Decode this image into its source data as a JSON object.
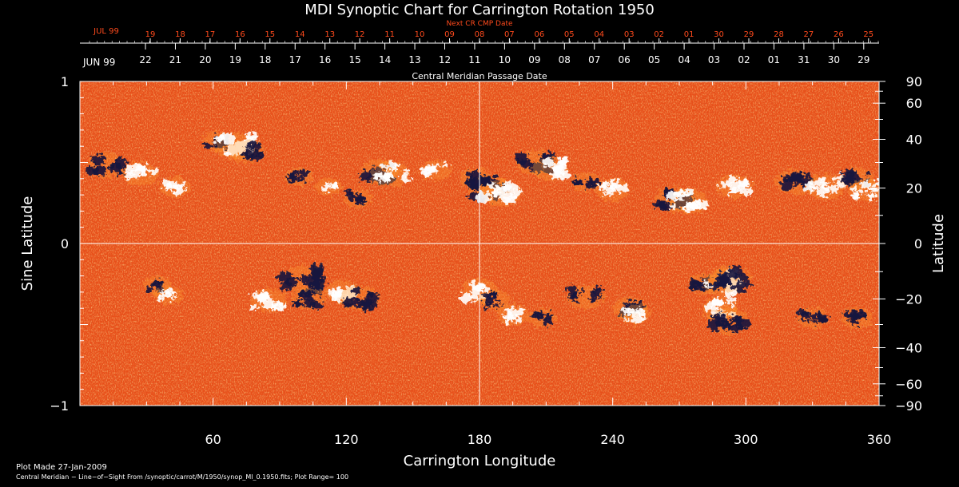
{
  "chart_data": {
    "type": "heatmap",
    "title": "MDI Synoptic Chart for Carrington Rotation 1950",
    "xlabel": "Carrington Longitude",
    "ylabel": "Sine Latitude",
    "y2label": "Latitude",
    "xlim": [
      0,
      360
    ],
    "ylim": [
      -1,
      1
    ],
    "x_ticks": [
      60,
      120,
      180,
      240,
      300,
      360
    ],
    "y_ticks": [
      {
        "v": 1,
        "label": "1"
      },
      {
        "v": 0,
        "label": "0"
      },
      {
        "v": -1,
        "label": "−1"
      }
    ],
    "lat_ticks": [
      {
        "deg": 90,
        "label": "90"
      },
      {
        "deg": 60,
        "label": "60"
      },
      {
        "deg": 40,
        "label": "40"
      },
      {
        "deg": 20,
        "label": "20"
      },
      {
        "deg": 0,
        "label": "0"
      },
      {
        "deg": -20,
        "label": "−20"
      },
      {
        "deg": -40,
        "label": "−40"
      },
      {
        "deg": -60,
        "label": "−60"
      },
      {
        "deg": -90,
        "label": "−90"
      }
    ],
    "cmp_axis": {
      "label": "Central Meridian Passage Date",
      "month_label": "JUN 99",
      "dates": [
        "22",
        "21",
        "20",
        "19",
        "18",
        "17",
        "16",
        "15",
        "14",
        "13",
        "12",
        "11",
        "10",
        "09",
        "08",
        "07",
        "06",
        "05",
        "04",
        "03",
        "02",
        "01",
        "31",
        "30",
        "29"
      ]
    },
    "next_cmp_axis": {
      "label": "Next CR CMP Date",
      "month_label": "JUL 99",
      "dates": [
        "19",
        "18",
        "17",
        "16",
        "15",
        "14",
        "13",
        "12",
        "11",
        "10",
        "09",
        "08",
        "07",
        "06",
        "05",
        "04",
        "03",
        "02",
        "01",
        "30",
        "29",
        "28",
        "27",
        "26",
        "25"
      ]
    },
    "plot_range": 100,
    "colors": {
      "background": "#e8501a",
      "positive": "#ffffff",
      "negative": "#16153f",
      "mid": "#ff9a30"
    },
    "regions": [
      {
        "lon": 12,
        "sinlat": 0.48,
        "polarity": "negative",
        "strength": 0.9
      },
      {
        "lon": 27,
        "sinlat": 0.43,
        "polarity": "positive",
        "strength": 0.8
      },
      {
        "lon": 43,
        "sinlat": 0.35,
        "polarity": "positive",
        "strength": 0.6
      },
      {
        "lon": 62,
        "sinlat": 0.63,
        "polarity": "negative",
        "strength": 0.6
      },
      {
        "lon": 70,
        "sinlat": 0.6,
        "polarity": "positive",
        "strength": 1.0
      },
      {
        "lon": 75,
        "sinlat": 0.57,
        "polarity": "negative",
        "strength": 0.8
      },
      {
        "lon": 99,
        "sinlat": 0.41,
        "polarity": "negative",
        "strength": 0.5
      },
      {
        "lon": 112,
        "sinlat": 0.35,
        "polarity": "positive",
        "strength": 0.4
      },
      {
        "lon": 125,
        "sinlat": 0.28,
        "polarity": "negative",
        "strength": 0.5
      },
      {
        "lon": 135,
        "sinlat": 0.44,
        "polarity": "negative",
        "strength": 0.9
      },
      {
        "lon": 140,
        "sinlat": 0.43,
        "polarity": "positive",
        "strength": 0.9
      },
      {
        "lon": 160,
        "sinlat": 0.45,
        "polarity": "positive",
        "strength": 0.6
      },
      {
        "lon": 178,
        "sinlat": 0.4,
        "polarity": "negative",
        "strength": 0.6
      },
      {
        "lon": 184,
        "sinlat": 0.34,
        "polarity": "negative",
        "strength": 1.0
      },
      {
        "lon": 190,
        "sinlat": 0.31,
        "polarity": "positive",
        "strength": 1.0
      },
      {
        "lon": 205,
        "sinlat": 0.5,
        "polarity": "negative",
        "strength": 0.9
      },
      {
        "lon": 212,
        "sinlat": 0.46,
        "polarity": "positive",
        "strength": 0.8
      },
      {
        "lon": 228,
        "sinlat": 0.38,
        "polarity": "negative",
        "strength": 0.5
      },
      {
        "lon": 240,
        "sinlat": 0.33,
        "polarity": "positive",
        "strength": 0.7
      },
      {
        "lon": 268,
        "sinlat": 0.27,
        "polarity": "negative",
        "strength": 0.9
      },
      {
        "lon": 274,
        "sinlat": 0.26,
        "polarity": "positive",
        "strength": 0.9
      },
      {
        "lon": 295,
        "sinlat": 0.35,
        "polarity": "positive",
        "strength": 0.8
      },
      {
        "lon": 322,
        "sinlat": 0.38,
        "polarity": "negative",
        "strength": 0.9
      },
      {
        "lon": 336,
        "sinlat": 0.35,
        "polarity": "positive",
        "strength": 0.9
      },
      {
        "lon": 350,
        "sinlat": 0.4,
        "polarity": "negative",
        "strength": 0.7
      },
      {
        "lon": 354,
        "sinlat": 0.33,
        "polarity": "positive",
        "strength": 0.7
      },
      {
        "lon": 35,
        "sinlat": -0.26,
        "polarity": "negative",
        "strength": 0.5
      },
      {
        "lon": 40,
        "sinlat": -0.32,
        "polarity": "positive",
        "strength": 0.5
      },
      {
        "lon": 85,
        "sinlat": -0.35,
        "polarity": "positive",
        "strength": 0.8
      },
      {
        "lon": 100,
        "sinlat": -0.22,
        "polarity": "negative",
        "strength": 1.0
      },
      {
        "lon": 103,
        "sinlat": -0.34,
        "polarity": "negative",
        "strength": 0.7
      },
      {
        "lon": 118,
        "sinlat": -0.3,
        "polarity": "positive",
        "strength": 0.7
      },
      {
        "lon": 126,
        "sinlat": -0.34,
        "polarity": "negative",
        "strength": 0.9
      },
      {
        "lon": 180,
        "sinlat": -0.29,
        "polarity": "positive",
        "strength": 0.8
      },
      {
        "lon": 187,
        "sinlat": -0.35,
        "polarity": "negative",
        "strength": 0.6
      },
      {
        "lon": 195,
        "sinlat": -0.44,
        "polarity": "positive",
        "strength": 0.6
      },
      {
        "lon": 208,
        "sinlat": -0.46,
        "polarity": "negative",
        "strength": 0.5
      },
      {
        "lon": 228,
        "sinlat": -0.33,
        "polarity": "negative",
        "strength": 0.8
      },
      {
        "lon": 248,
        "sinlat": -0.4,
        "polarity": "negative",
        "strength": 0.7
      },
      {
        "lon": 250,
        "sinlat": -0.44,
        "polarity": "positive",
        "strength": 0.6
      },
      {
        "lon": 281,
        "sinlat": -0.25,
        "polarity": "negative",
        "strength": 0.6
      },
      {
        "lon": 290,
        "sinlat": -0.24,
        "polarity": "positive",
        "strength": 1.0
      },
      {
        "lon": 294,
        "sinlat": -0.22,
        "polarity": "negative",
        "strength": 0.9
      },
      {
        "lon": 288,
        "sinlat": -0.4,
        "polarity": "positive",
        "strength": 0.8
      },
      {
        "lon": 292,
        "sinlat": -0.48,
        "polarity": "negative",
        "strength": 1.0
      },
      {
        "lon": 330,
        "sinlat": -0.46,
        "polarity": "negative",
        "strength": 0.6
      },
      {
        "lon": 350,
        "sinlat": -0.46,
        "polarity": "negative",
        "strength": 0.6
      }
    ]
  },
  "footer": {
    "plot_made": "Plot Made 27-Jan-2009",
    "info": "Central Meridian − Line−of−Sight From /synoptic/carrot/M/1950/synop_Ml_0.1950.fits; Plot Range= 100"
  }
}
